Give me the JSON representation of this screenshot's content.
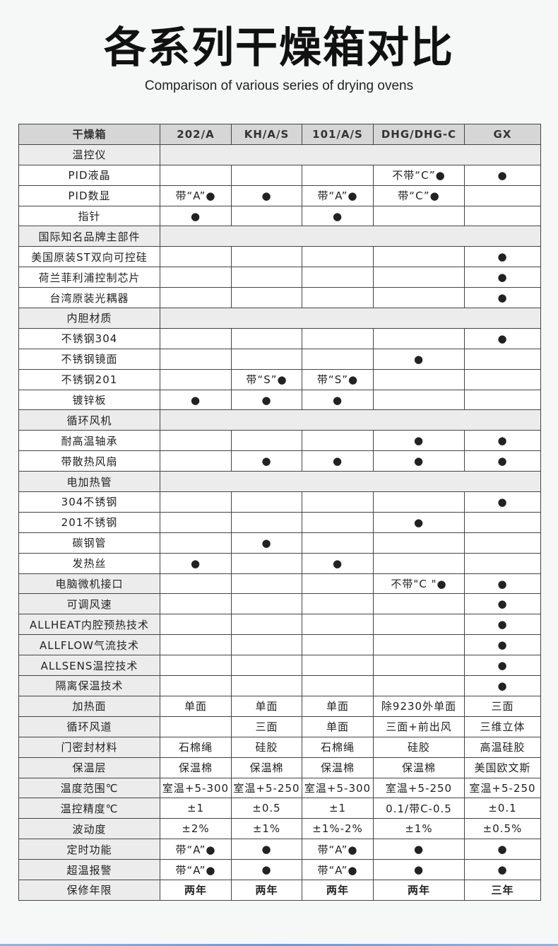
{
  "title": "各系列干燥箱对比",
  "subtitle": "Comparison of various series of drying ovens",
  "table": {
    "headers": [
      "干燥箱",
      "202/A",
      "KH/A/S",
      "101/A/S",
      "DHG/DHG-C",
      "GX"
    ],
    "rows": [
      {
        "label": "温控仪",
        "section": true
      },
      {
        "label": "PID液晶",
        "cells": [
          "",
          "",
          "",
          "不带“C”●",
          "●"
        ]
      },
      {
        "label": "PID数显",
        "cells": [
          "带“A”●",
          "●",
          "带“A”●",
          "带“C”●",
          ""
        ]
      },
      {
        "label": "指针",
        "cells": [
          "●",
          "",
          "●",
          "",
          ""
        ]
      },
      {
        "label": "国际知名品牌主部件",
        "section": true
      },
      {
        "label": "美国原装ST双向可控硅",
        "cells": [
          "",
          "",
          "",
          "",
          "●"
        ]
      },
      {
        "label": "荷兰菲利浦控制芯片",
        "cells": [
          "",
          "",
          "",
          "",
          "●"
        ]
      },
      {
        "label": "台湾原装光耦器",
        "cells": [
          "",
          "",
          "",
          "",
          "●"
        ]
      },
      {
        "label": "内胆材质",
        "section": true
      },
      {
        "label": "不锈钢304",
        "cells": [
          "",
          "",
          "",
          "",
          "●"
        ]
      },
      {
        "label": "不锈钢镜面",
        "cells": [
          "",
          "",
          "",
          "●",
          ""
        ]
      },
      {
        "label": "不锈钢201",
        "cells": [
          "",
          "带“S”●",
          "带“S”●",
          "",
          ""
        ]
      },
      {
        "label": "镀锌板",
        "cells": [
          "●",
          "●",
          "●",
          "",
          ""
        ]
      },
      {
        "label": "循环风机",
        "section": true
      },
      {
        "label": "耐高温轴承",
        "cells": [
          "",
          "",
          "",
          "●",
          "●"
        ]
      },
      {
        "label": "带散热风扇",
        "cells": [
          "",
          "●",
          "●",
          "●",
          "●"
        ]
      },
      {
        "label": "电加热管",
        "section": true
      },
      {
        "label": "304不锈钢",
        "cells": [
          "",
          "",
          "",
          "",
          "●"
        ]
      },
      {
        "label": "201不锈钢",
        "cells": [
          "",
          "",
          "",
          "●",
          ""
        ]
      },
      {
        "label": "碳钢管",
        "cells": [
          "",
          "●",
          "",
          "",
          ""
        ]
      },
      {
        "label": "发热丝",
        "cells": [
          "●",
          "",
          "●",
          "",
          ""
        ]
      },
      {
        "label": "电脑微机接口",
        "shade": true,
        "cells": [
          "",
          "",
          "",
          "不带\"C \"●",
          "●"
        ]
      },
      {
        "label": "可调风速",
        "shade": true,
        "cells": [
          "",
          "",
          "",
          "",
          "●"
        ]
      },
      {
        "label": "ALLHEAT内腔预热技术",
        "shade": true,
        "cells": [
          "",
          "",
          "",
          "",
          "●"
        ]
      },
      {
        "label": "ALLFLOW气流技术",
        "shade": true,
        "cells": [
          "",
          "",
          "",
          "",
          "●"
        ]
      },
      {
        "label": "ALLSENS温控技术",
        "shade": true,
        "cells": [
          "",
          "",
          "",
          "",
          "●"
        ]
      },
      {
        "label": "隔离保温技术",
        "shade": true,
        "cells": [
          "",
          "",
          "",
          "",
          "●"
        ]
      },
      {
        "label": "加热面",
        "shade": true,
        "cells": [
          "单面",
          "单面",
          "单面",
          "除9230外单面",
          "三面"
        ]
      },
      {
        "label": "循环风道",
        "shade": true,
        "cells": [
          "",
          "三面",
          "单面",
          "三面+前出风",
          "三维立体"
        ]
      },
      {
        "label": "门密封材料",
        "shade": true,
        "cells": [
          "石棉绳",
          "硅胶",
          "石棉绳",
          "硅胶",
          "高温硅胶"
        ]
      },
      {
        "label": "保温层",
        "shade": true,
        "cells": [
          "保温棉",
          "保温棉",
          "保温棉",
          "保温棉",
          "美国欧文斯"
        ]
      },
      {
        "label": "温度范围℃",
        "shade": true,
        "cells": [
          "室温+5-300",
          "室温+5-250",
          "室温+5-300",
          "室温+5-250",
          "室温+5-250"
        ]
      },
      {
        "label": "温控精度℃",
        "shade": true,
        "cells": [
          "±1",
          "±0.5",
          "±1",
          "0.1/带C-0.5",
          "±0.1"
        ]
      },
      {
        "label": "波动度",
        "shade": true,
        "cells": [
          "±2%",
          "±1%",
          "±1%-2%",
          "±1%",
          "±0.5%"
        ]
      },
      {
        "label": "定时功能",
        "shade": true,
        "cells": [
          "带“A”●",
          "●",
          "带“A”●",
          "●",
          "●"
        ]
      },
      {
        "label": "超温报警",
        "shade": true,
        "cells": [
          "带“A”●",
          "●",
          "带“A”●",
          "●",
          "●"
        ]
      },
      {
        "label": "保修年限",
        "shade": true,
        "bold": true,
        "cells": [
          "两年",
          "两年",
          "两年",
          "两年",
          "三年"
        ]
      }
    ]
  }
}
